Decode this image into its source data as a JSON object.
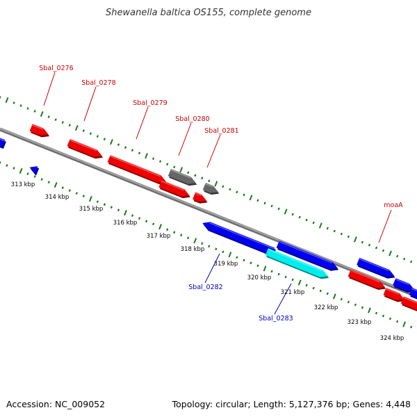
{
  "title": "Shewanella baltica OS155, complete genome",
  "footer": {
    "accession": "Accession: NC_009052",
    "summary": "Topology: circular; Length: 5,127,376 bp; Genes: 4,448"
  },
  "colors": {
    "forward_gene": "#0000ee",
    "reverse_gene": "#ee0000",
    "other_gene": "#666666",
    "highlight_gene": "#00eeee",
    "backbone": "#8a8a8a",
    "ticks": "#1a7a1a",
    "label_forward": "#cc0000",
    "label_reverse": "#0000bb"
  },
  "kbp_labels": [
    "313 kbp",
    "314 kbp",
    "315 kbp",
    "316 kbp",
    "317 kbp",
    "318 kbp",
    "319 kbp",
    "320 kbp",
    "321 kbp",
    "322 kbp",
    "323 kbp",
    "324 kbp"
  ],
  "gene_labels": [
    {
      "name": "Sbal_0276",
      "strand": "forward"
    },
    {
      "name": "Sbal_0278",
      "strand": "forward"
    },
    {
      "name": "Sbal_0279",
      "strand": "forward"
    },
    {
      "name": "Sbal_0280",
      "strand": "forward"
    },
    {
      "name": "Sbal_0281",
      "strand": "forward"
    },
    {
      "name": "moaA",
      "strand": "forward"
    },
    {
      "name": "Sbal_0282",
      "strand": "reverse"
    },
    {
      "name": "Sbal_0283",
      "strand": "reverse"
    }
  ]
}
